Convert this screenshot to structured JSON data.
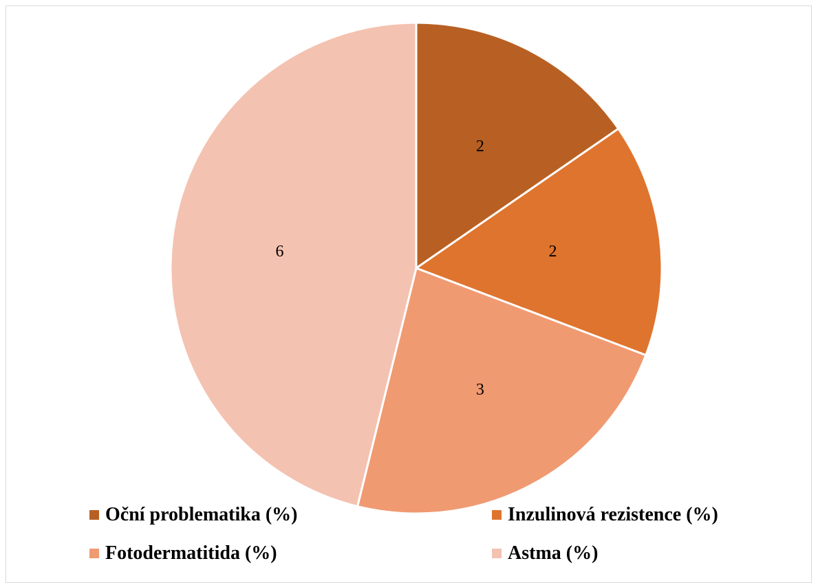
{
  "chart_data": {
    "type": "pie",
    "categories": [
      "Oční problematika (%)",
      "Inzulinová rezistence (%)",
      "Fotodermatitida (%)",
      "Astma (%)"
    ],
    "values": [
      2,
      2,
      3,
      6
    ],
    "data_labels": [
      "2",
      "2",
      "3",
      "6"
    ],
    "colors": [
      "#B86023",
      "#DF742E",
      "#F09A72",
      "#F4C2B1"
    ],
    "start_angle_deg": 0,
    "direction": "clockwise",
    "legend_position": "bottom"
  }
}
